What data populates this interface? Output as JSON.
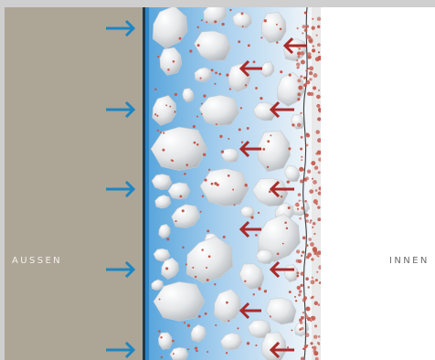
{
  "labels": {
    "outside": "AUSSEN",
    "inside": "INNEN"
  },
  "colors": {
    "frame": "#cfcfcf",
    "outer_wall": "#ada596",
    "membrane_blue": "#2f86c4",
    "membrane_dark": "#1b3a52",
    "inward_arrow": "#1d86c2",
    "outward_arrow": "#a92a2a",
    "particles": "#c45a4d",
    "interior": "#ffffff"
  },
  "icons": {
    "inward": "arrow-right-icon",
    "outward": "arrow-left-icon"
  }
}
